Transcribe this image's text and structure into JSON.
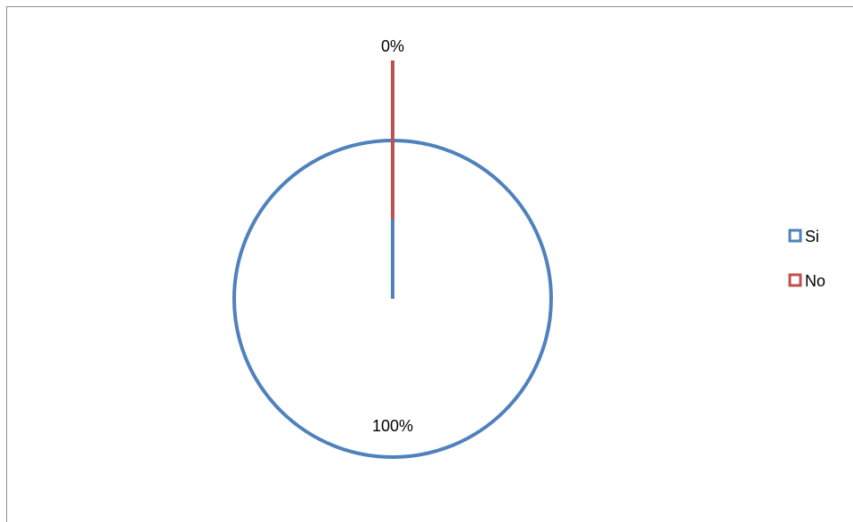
{
  "chart_data": {
    "type": "pie",
    "categories": [
      "Si",
      "No"
    ],
    "values": [
      100,
      0
    ],
    "data_labels": [
      "100%",
      "0%"
    ],
    "colors": [
      "#4f81bd",
      "#c0504d"
    ],
    "fill": "none",
    "legend_position": "right"
  }
}
